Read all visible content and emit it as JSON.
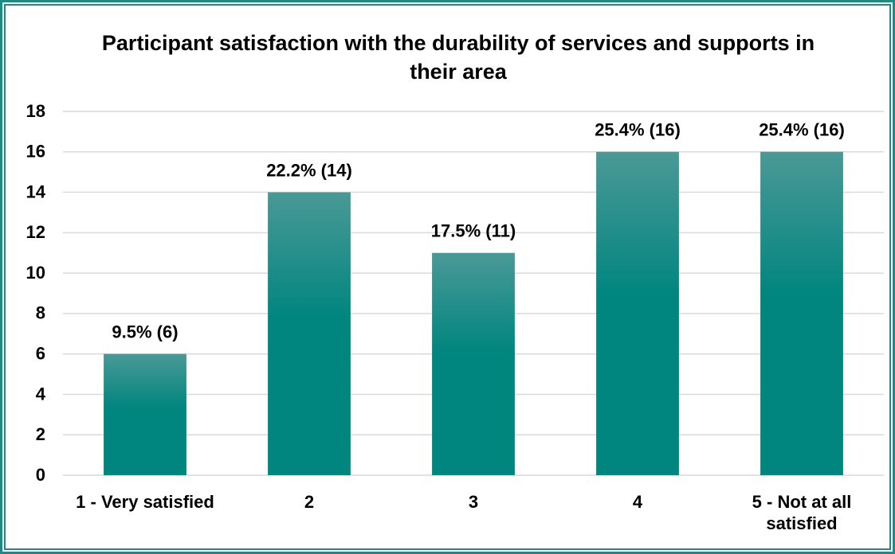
{
  "chart_data": {
    "type": "bar",
    "title": "Participant satisfaction with the durability of services and supports in their area",
    "categories": [
      "1 - Very satisfied",
      "2",
      "3",
      "4",
      "5 - Not at all satisfied"
    ],
    "values": [
      6,
      14,
      11,
      16,
      16
    ],
    "value_labels": [
      "9.5% (6)",
      "22.2% (14)",
      "17.5% (11)",
      "25.4% (16)",
      "25.4% (16)"
    ],
    "color": "#00857f",
    "ylim": [
      0,
      18
    ],
    "yticks": [
      0,
      2,
      4,
      6,
      8,
      10,
      12,
      14,
      16,
      18
    ],
    "grid": true
  }
}
